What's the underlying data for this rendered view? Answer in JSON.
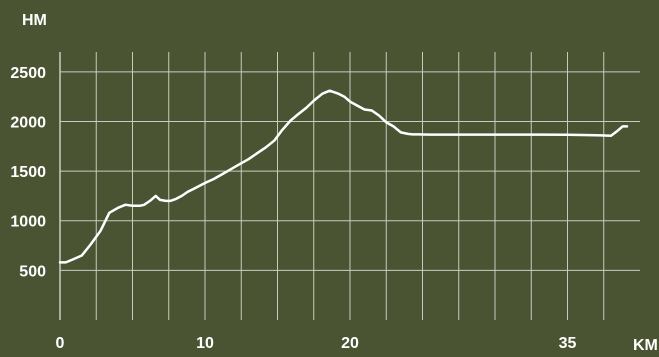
{
  "colors": {
    "background": "#4a5433",
    "grid": "#c8ccc0",
    "line": "#ffffff",
    "text": "#ffffff"
  },
  "chart_data": {
    "type": "line",
    "title": "",
    "xlabel": "KM",
    "ylabel": "HM",
    "xlim": [
      0,
      40
    ],
    "ylim": [
      0,
      2750
    ],
    "x_ticks": [
      0,
      10,
      20,
      35
    ],
    "x_tick_labels": [
      "0",
      "10",
      "20",
      "35"
    ],
    "y_ticks": [
      500,
      1000,
      1500,
      2000,
      2500
    ],
    "y_tick_labels": [
      "500",
      "1000",
      "1500",
      "2000",
      "2500"
    ],
    "x_gridlines": [
      0,
      2.5,
      5,
      7.5,
      10,
      12.5,
      15,
      17.5,
      20,
      22.5,
      25,
      27.5,
      30,
      32.5,
      35,
      37.5
    ],
    "y_gridlines": [
      500,
      1000,
      1500,
      2000,
      2500
    ],
    "grid": true,
    "legend": "none",
    "series": [
      {
        "x": [
          0,
          0.4,
          0.9,
          1.5,
          2.1,
          2.8,
          3.4,
          4.0,
          4.5,
          5.0,
          5.5,
          5.8,
          6.2,
          6.6,
          6.9,
          7.3,
          7.6,
          8.0,
          8.4,
          8.8,
          9.2,
          9.6,
          10.0,
          10.6,
          11.2,
          11.8,
          12.4,
          13.0,
          13.6,
          14.2,
          14.8,
          15.3,
          15.9,
          16.4,
          17.0,
          17.5,
          18.1,
          18.6,
          19.2,
          19.6,
          20.0,
          20.5,
          21.0,
          21.5,
          22.0,
          22.5,
          23.0,
          23.5,
          24.0,
          24.3,
          24.7,
          25.5,
          27.0,
          30.0,
          33.0,
          35.0,
          36.5,
          37.3,
          38.0,
          38.4,
          38.8,
          39.1
        ],
        "y": [
          580,
          580,
          610,
          650,
          760,
          900,
          1080,
          1130,
          1160,
          1150,
          1150,
          1160,
          1200,
          1250,
          1210,
          1200,
          1200,
          1220,
          1250,
          1290,
          1320,
          1350,
          1380,
          1420,
          1470,
          1520,
          1570,
          1620,
          1680,
          1740,
          1810,
          1910,
          2010,
          2070,
          2140,
          2210,
          2280,
          2310,
          2280,
          2250,
          2200,
          2160,
          2120,
          2110,
          2060,
          1990,
          1950,
          1890,
          1875,
          1870,
          1870,
          1868,
          1868,
          1868,
          1868,
          1866,
          1863,
          1860,
          1855,
          1900,
          1950,
          1950
        ]
      }
    ]
  }
}
